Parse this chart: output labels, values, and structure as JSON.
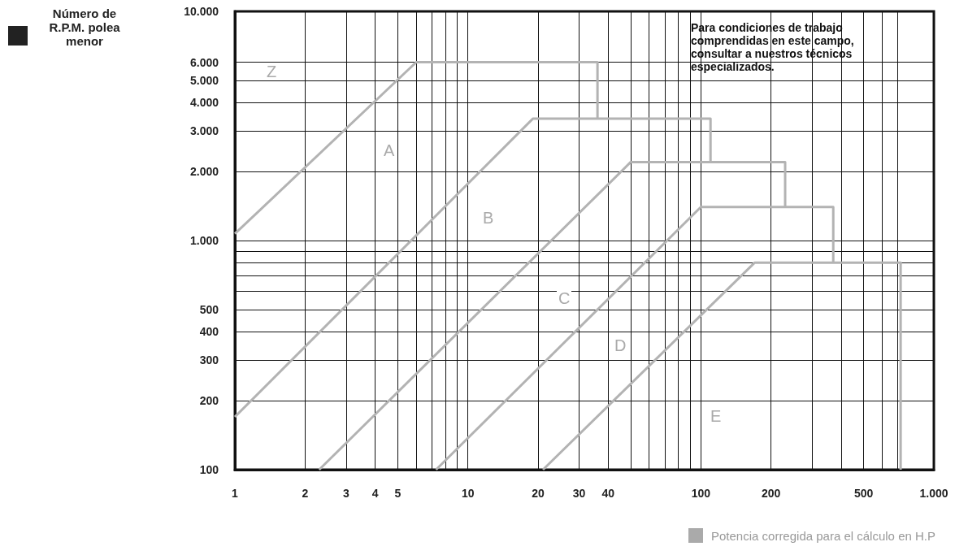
{
  "chart_data": {
    "type": "line",
    "xlabel": "Potencia corregida para el cálculo en H.P",
    "annotations": [
      "Número de R.P.M. polea menor",
      "Para condiciones de trabajo comprendidas en este campo, consultar a nuestros técnicos especializados.",
      "Z",
      "A",
      "B",
      "C",
      "D",
      "E"
    ],
    "log": "xy",
    "grid": true,
    "marker": "none",
    "line_style": "solid",
    "xlim": [
      1,
      1000
    ],
    "ylim": [
      100,
      10000
    ],
    "xticks": [
      {
        "value": 1,
        "label": "1"
      },
      {
        "value": 2,
        "label": "2"
      },
      {
        "value": 3,
        "label": "3"
      },
      {
        "value": 4,
        "label": "4"
      },
      {
        "value": 5,
        "label": "5"
      },
      {
        "value": 6,
        "label": null
      },
      {
        "value": 7,
        "label": null
      },
      {
        "value": 8,
        "label": null
      },
      {
        "value": 9,
        "label": null
      },
      {
        "value": 10,
        "label": "10"
      },
      {
        "value": 20,
        "label": "20"
      },
      {
        "value": 30,
        "label": "30"
      },
      {
        "value": 40,
        "label": "40"
      },
      {
        "value": 50,
        "label": null
      },
      {
        "value": 60,
        "label": null
      },
      {
        "value": 70,
        "label": null
      },
      {
        "value": 80,
        "label": null
      },
      {
        "value": 90,
        "label": null
      },
      {
        "value": 100,
        "label": "100"
      },
      {
        "value": 200,
        "label": "200"
      },
      {
        "value": 300,
        "label": null
      },
      {
        "value": 400,
        "label": null
      },
      {
        "value": 500,
        "label": "500"
      },
      {
        "value": 600,
        "label": null
      },
      {
        "value": 700,
        "label": null
      },
      {
        "value": 1000,
        "label": "1.000"
      }
    ],
    "yticks": [
      {
        "value": 100,
        "label": "100"
      },
      {
        "value": 200,
        "label": "200"
      },
      {
        "value": 300,
        "label": "300"
      },
      {
        "value": 400,
        "label": "400"
      },
      {
        "value": 500,
        "label": "500"
      },
      {
        "value": 600,
        "label": null
      },
      {
        "value": 700,
        "label": null
      },
      {
        "value": 800,
        "label": null
      },
      {
        "value": 900,
        "label": null
      },
      {
        "value": 1000,
        "label": "1.000"
      },
      {
        "value": 2000,
        "label": "2.000"
      },
      {
        "value": 3000,
        "label": "3.000"
      },
      {
        "value": 4000,
        "label": "4.000"
      },
      {
        "value": 5000,
        "label": "5.000"
      },
      {
        "value": 6000,
        "label": "6.000"
      },
      {
        "value": 10000,
        "label": "10.000"
      }
    ],
    "series": [
      {
        "color": "#b3b3b3",
        "x": [
          1,
          6,
          36,
          36
        ],
        "values": [
          1070,
          6000,
          6000,
          3400
        ]
      },
      {
        "color": "#b3b3b3",
        "x": [
          1,
          19,
          110,
          110
        ],
        "values": [
          170,
          3400,
          3400,
          2200
        ]
      },
      {
        "color": "#b3b3b3",
        "x": [
          2.3,
          50,
          230,
          230
        ],
        "values": [
          100,
          2200,
          2200,
          1400
        ]
      },
      {
        "color": "#b3b3b3",
        "x": [
          7.3,
          100,
          370,
          370
        ],
        "values": [
          100,
          1400,
          1400,
          800
        ]
      },
      {
        "color": "#b3b3b3",
        "x": [
          21,
          170,
          720,
          720
        ],
        "values": [
          100,
          800,
          800,
          100
        ]
      }
    ]
  }
}
